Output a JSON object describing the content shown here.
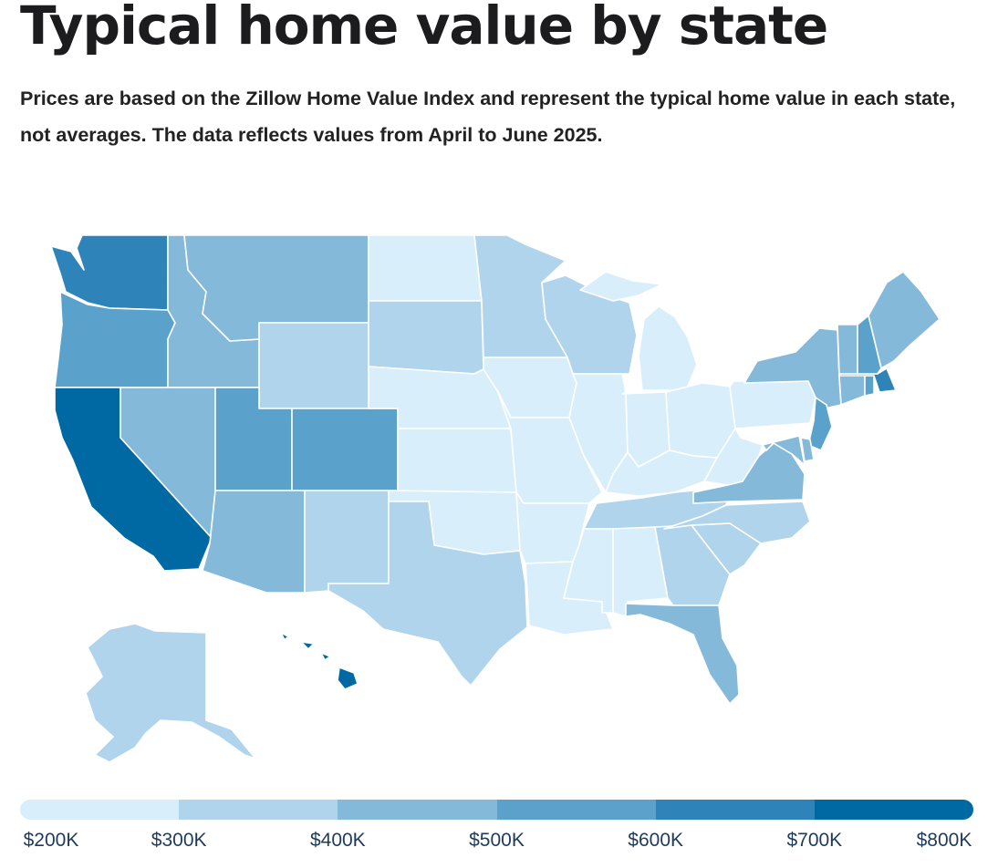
{
  "title": "Typical home value by state",
  "subtitle": "Prices are based on the Zillow Home Value Index and represent the typical home value in each state, not averages. The data reflects values from April to June 2025.",
  "colors": {
    "c1": "#d9eefb",
    "c2": "#b0d4ec",
    "c3": "#85b9da",
    "c4": "#5aa2cc",
    "c5": "#2e84b8",
    "c6": "#0068a3"
  },
  "legend": {
    "bins": [
      "c1",
      "c2",
      "c3",
      "c4",
      "c5",
      "c6"
    ],
    "labels": [
      "$200K",
      "$300K",
      "$400K",
      "$500K",
      "$600K",
      "$700K",
      "$800K"
    ]
  },
  "states": [
    {
      "code": "WA",
      "bin": "c5"
    },
    {
      "code": "OR",
      "bin": "c4"
    },
    {
      "code": "CA",
      "bin": "c6"
    },
    {
      "code": "ID",
      "bin": "c3"
    },
    {
      "code": "NV",
      "bin": "c3"
    },
    {
      "code": "MT",
      "bin": "c3"
    },
    {
      "code": "WY",
      "bin": "c2"
    },
    {
      "code": "UT",
      "bin": "c4"
    },
    {
      "code": "AZ",
      "bin": "c3"
    },
    {
      "code": "CO",
      "bin": "c4"
    },
    {
      "code": "NM",
      "bin": "c2"
    },
    {
      "code": "ND",
      "bin": "c1"
    },
    {
      "code": "SD",
      "bin": "c2"
    },
    {
      "code": "NE",
      "bin": "c1"
    },
    {
      "code": "KS",
      "bin": "c1"
    },
    {
      "code": "OK",
      "bin": "c1"
    },
    {
      "code": "TX",
      "bin": "c2"
    },
    {
      "code": "MN",
      "bin": "c2"
    },
    {
      "code": "IA",
      "bin": "c1"
    },
    {
      "code": "MO",
      "bin": "c1"
    },
    {
      "code": "AR",
      "bin": "c1"
    },
    {
      "code": "LA",
      "bin": "c1"
    },
    {
      "code": "WI",
      "bin": "c2"
    },
    {
      "code": "IL",
      "bin": "c1"
    },
    {
      "code": "MI",
      "bin": "c1"
    },
    {
      "code": "IN",
      "bin": "c1"
    },
    {
      "code": "OH",
      "bin": "c1"
    },
    {
      "code": "KY",
      "bin": "c1"
    },
    {
      "code": "TN",
      "bin": "c2"
    },
    {
      "code": "MS",
      "bin": "c1"
    },
    {
      "code": "AL",
      "bin": "c1"
    },
    {
      "code": "GA",
      "bin": "c2"
    },
    {
      "code": "FL",
      "bin": "c3"
    },
    {
      "code": "SC",
      "bin": "c2"
    },
    {
      "code": "NC",
      "bin": "c2"
    },
    {
      "code": "VA",
      "bin": "c3"
    },
    {
      "code": "WV",
      "bin": "c1"
    },
    {
      "code": "PA",
      "bin": "c1"
    },
    {
      "code": "NY",
      "bin": "c3"
    },
    {
      "code": "NJ",
      "bin": "c4"
    },
    {
      "code": "DE",
      "bin": "c3"
    },
    {
      "code": "MD",
      "bin": "c3"
    },
    {
      "code": "CT",
      "bin": "c3"
    },
    {
      "code": "RI",
      "bin": "c4"
    },
    {
      "code": "MA",
      "bin": "c5"
    },
    {
      "code": "VT",
      "bin": "c3"
    },
    {
      "code": "NH",
      "bin": "c4"
    },
    {
      "code": "ME",
      "bin": "c3"
    },
    {
      "code": "AK",
      "bin": "c2"
    },
    {
      "code": "HI",
      "bin": "c6"
    }
  ]
}
